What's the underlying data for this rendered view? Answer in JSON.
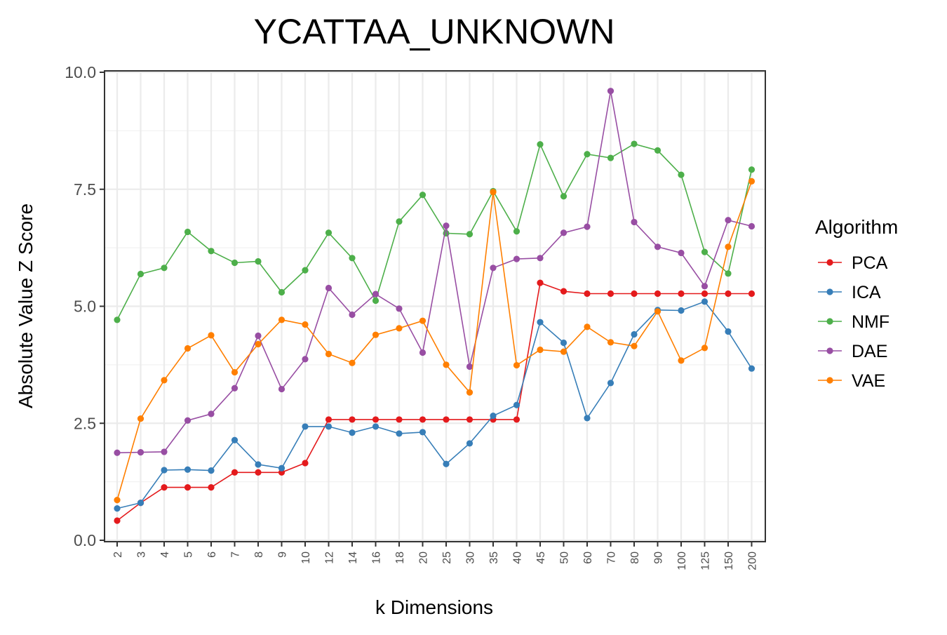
{
  "chart_data": {
    "type": "line",
    "title": "YCATTAA_UNKNOWN",
    "xlabel": "k Dimensions",
    "ylabel": "Absolute Value Z Score",
    "categories": [
      "2",
      "3",
      "4",
      "5",
      "6",
      "7",
      "8",
      "9",
      "10",
      "12",
      "14",
      "16",
      "18",
      "20",
      "25",
      "30",
      "35",
      "40",
      "45",
      "50",
      "60",
      "70",
      "80",
      "90",
      "100",
      "125",
      "150",
      "200"
    ],
    "ylim": [
      0,
      10
    ],
    "yticks": [
      "0.0",
      "2.5",
      "5.0",
      "7.5",
      "10.0"
    ],
    "grid": true,
    "legend": {
      "title": "Algorithm",
      "placement": "right"
    },
    "series": [
      {
        "name": "PCA",
        "color": "#e41a1c",
        "values": [
          0.42,
          0.8,
          1.13,
          1.13,
          1.13,
          1.45,
          1.45,
          1.45,
          1.65,
          2.58,
          2.58,
          2.58,
          2.58,
          2.58,
          2.58,
          2.58,
          2.58,
          2.58,
          5.5,
          5.32,
          5.27,
          5.27,
          5.27,
          5.27,
          5.27,
          5.27,
          5.27,
          5.27
        ]
      },
      {
        "name": "ICA",
        "color": "#377eb8",
        "values": [
          0.68,
          0.8,
          1.5,
          1.51,
          1.49,
          2.14,
          1.62,
          1.54,
          2.43,
          2.43,
          2.3,
          2.43,
          2.28,
          2.31,
          1.63,
          2.07,
          2.66,
          2.89,
          4.66,
          4.22,
          2.61,
          3.36,
          4.4,
          4.92,
          4.91,
          5.1,
          4.46,
          3.67
        ]
      },
      {
        "name": "NMF",
        "color": "#4daf4a",
        "values": [
          4.71,
          5.69,
          5.82,
          6.59,
          6.18,
          5.93,
          5.96,
          5.3,
          5.77,
          6.57,
          6.03,
          5.12,
          6.81,
          7.38,
          6.56,
          6.54,
          7.46,
          6.6,
          8.46,
          7.35,
          8.25,
          8.17,
          8.47,
          8.33,
          7.81,
          6.16,
          5.7,
          7.92
        ]
      },
      {
        "name": "DAE",
        "color": "#984ea3",
        "values": [
          1.87,
          1.88,
          1.89,
          2.56,
          2.7,
          3.25,
          4.37,
          3.23,
          3.87,
          5.39,
          4.82,
          5.26,
          4.95,
          4.01,
          6.72,
          3.71,
          5.82,
          6.01,
          6.03,
          6.57,
          6.7,
          9.6,
          6.8,
          6.27,
          6.14,
          5.43,
          6.84,
          6.71
        ]
      },
      {
        "name": "VAE",
        "color": "#ff7f00",
        "values": [
          0.86,
          2.6,
          3.42,
          4.1,
          4.38,
          3.59,
          4.19,
          4.71,
          4.61,
          3.98,
          3.79,
          4.39,
          4.53,
          4.69,
          3.75,
          3.16,
          7.44,
          3.74,
          4.07,
          4.03,
          4.56,
          4.23,
          4.15,
          4.89,
          3.84,
          4.11,
          6.27,
          7.67
        ]
      }
    ]
  }
}
